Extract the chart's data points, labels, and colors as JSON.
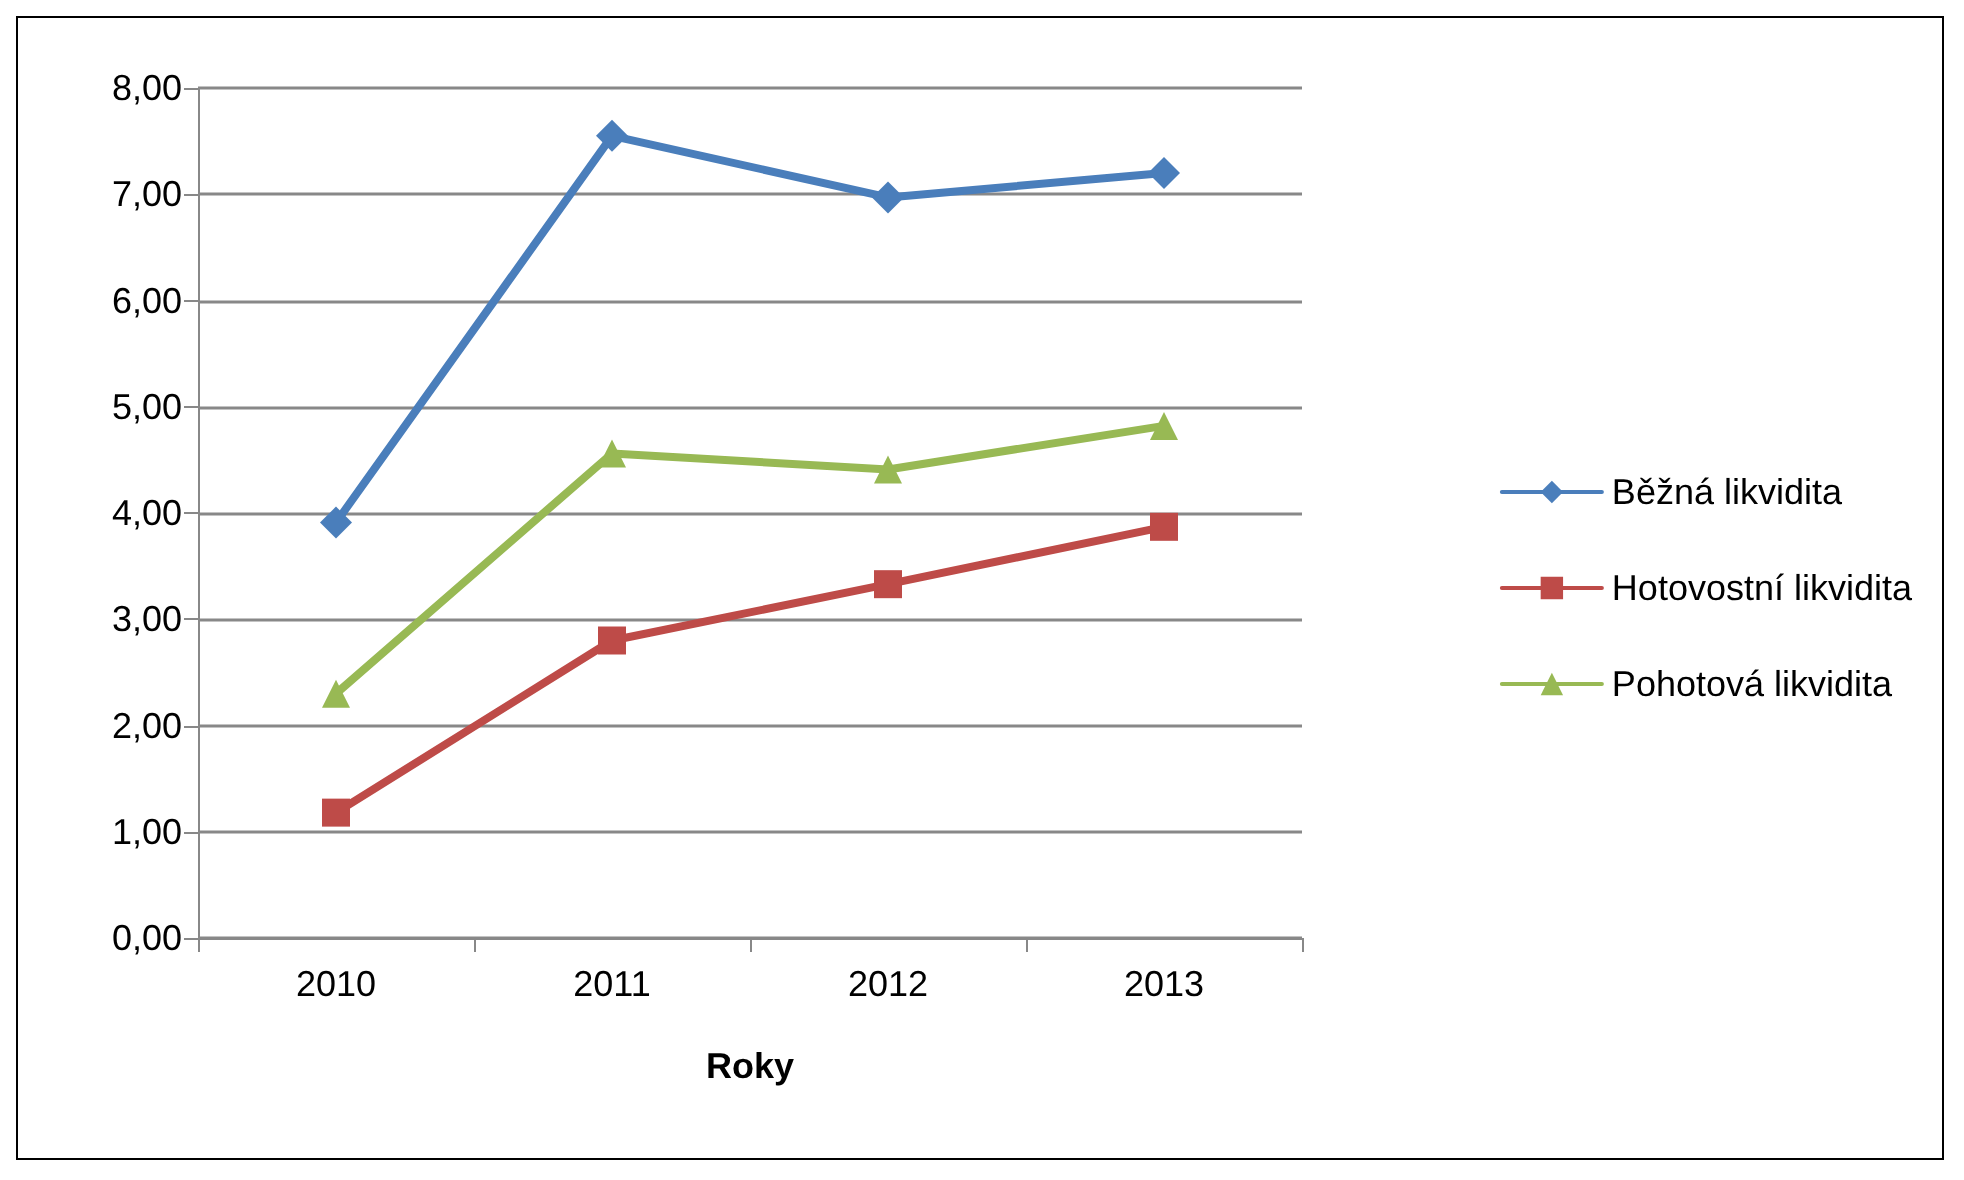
{
  "chart_data": {
    "type": "line",
    "xlabel": "Roky",
    "categories": [
      "2010",
      "2011",
      "2012",
      "2013"
    ],
    "series": [
      {
        "name": "Běžná likvidita",
        "color": "#4a7ebb",
        "marker": "diamond",
        "values": [
          3.91,
          7.55,
          6.97,
          7.2
        ]
      },
      {
        "name": "Hotovostní likvidita",
        "color": "#be4b48",
        "marker": "square",
        "values": [
          1.18,
          2.8,
          3.33,
          3.87
        ]
      },
      {
        "name": "Pohotová likvidita",
        "color": "#98b954",
        "marker": "triangle",
        "values": [
          2.3,
          4.56,
          4.41,
          4.82
        ]
      }
    ],
    "ylim": [
      0,
      8
    ],
    "yticks": [
      {
        "value": 0,
        "label": "0,00"
      },
      {
        "value": 1,
        "label": "1,00"
      },
      {
        "value": 2,
        "label": "2,00"
      },
      {
        "value": 3,
        "label": "3,00"
      },
      {
        "value": 4,
        "label": "4,00"
      },
      {
        "value": 5,
        "label": "5,00"
      },
      {
        "value": 6,
        "label": "6,00"
      },
      {
        "value": 7,
        "label": "7,00"
      },
      {
        "value": 8,
        "label": "8,00"
      }
    ],
    "grid": "y",
    "legend": "right",
    "line_style": "solid"
  }
}
